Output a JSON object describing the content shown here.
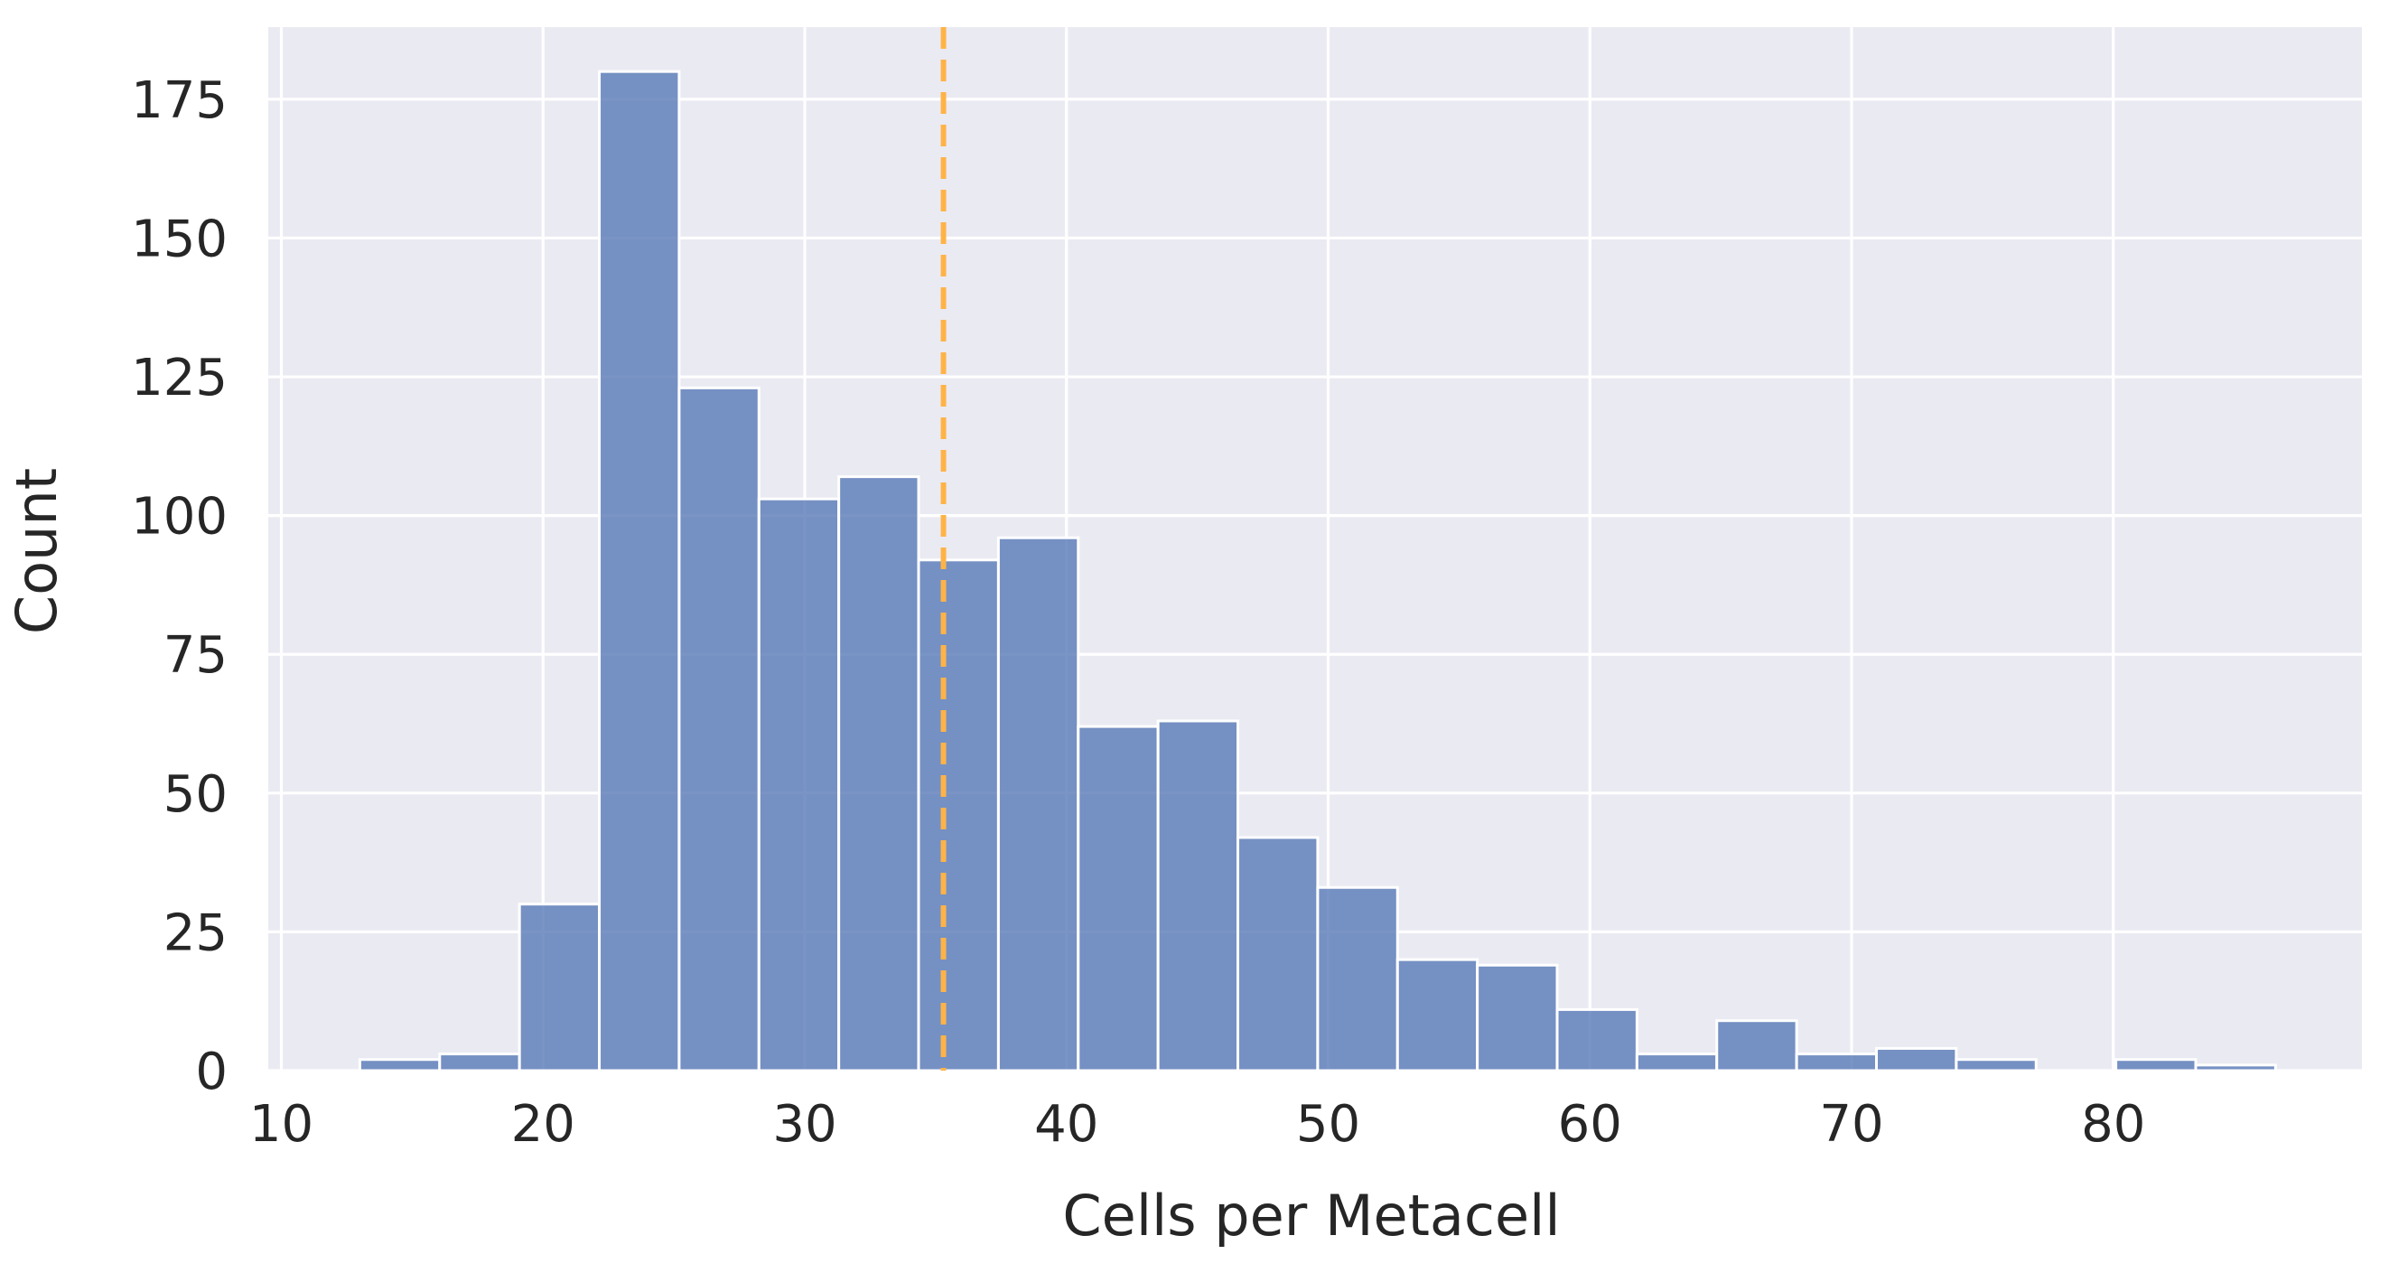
{
  "chart_data": {
    "type": "bar",
    "subtype": "histogram",
    "xlabel": "Cells per Metacell",
    "ylabel": "Count",
    "xlim": [
      9.5,
      89.5
    ],
    "ylim": [
      0,
      188
    ],
    "xticks": [
      10,
      20,
      30,
      40,
      50,
      60,
      70,
      80
    ],
    "yticks": [
      0,
      25,
      50,
      75,
      100,
      125,
      150,
      175
    ],
    "grid": true,
    "bin_edges": [
      13.0,
      16.05,
      19.1,
      22.15,
      25.2,
      28.25,
      31.3,
      34.35,
      37.4,
      40.45,
      43.5,
      46.55,
      49.6,
      52.65,
      55.7,
      58.75,
      61.8,
      64.85,
      67.9,
      70.95,
      74.0,
      77.05,
      80.1,
      83.15,
      86.2
    ],
    "counts": [
      2,
      3,
      30,
      180,
      123,
      103,
      107,
      92,
      96,
      62,
      63,
      42,
      33,
      20,
      19,
      11,
      3,
      9,
      3,
      4,
      2,
      0,
      2,
      1
    ],
    "reference_line": {
      "x": 35.3,
      "style": "dashed",
      "color": "#ffb347"
    },
    "colors": {
      "bar": "#5b7db8",
      "bar_edge": "#ffffff",
      "background": "#eaeaf2",
      "grid": "#ffffff",
      "text": "#262626"
    }
  }
}
